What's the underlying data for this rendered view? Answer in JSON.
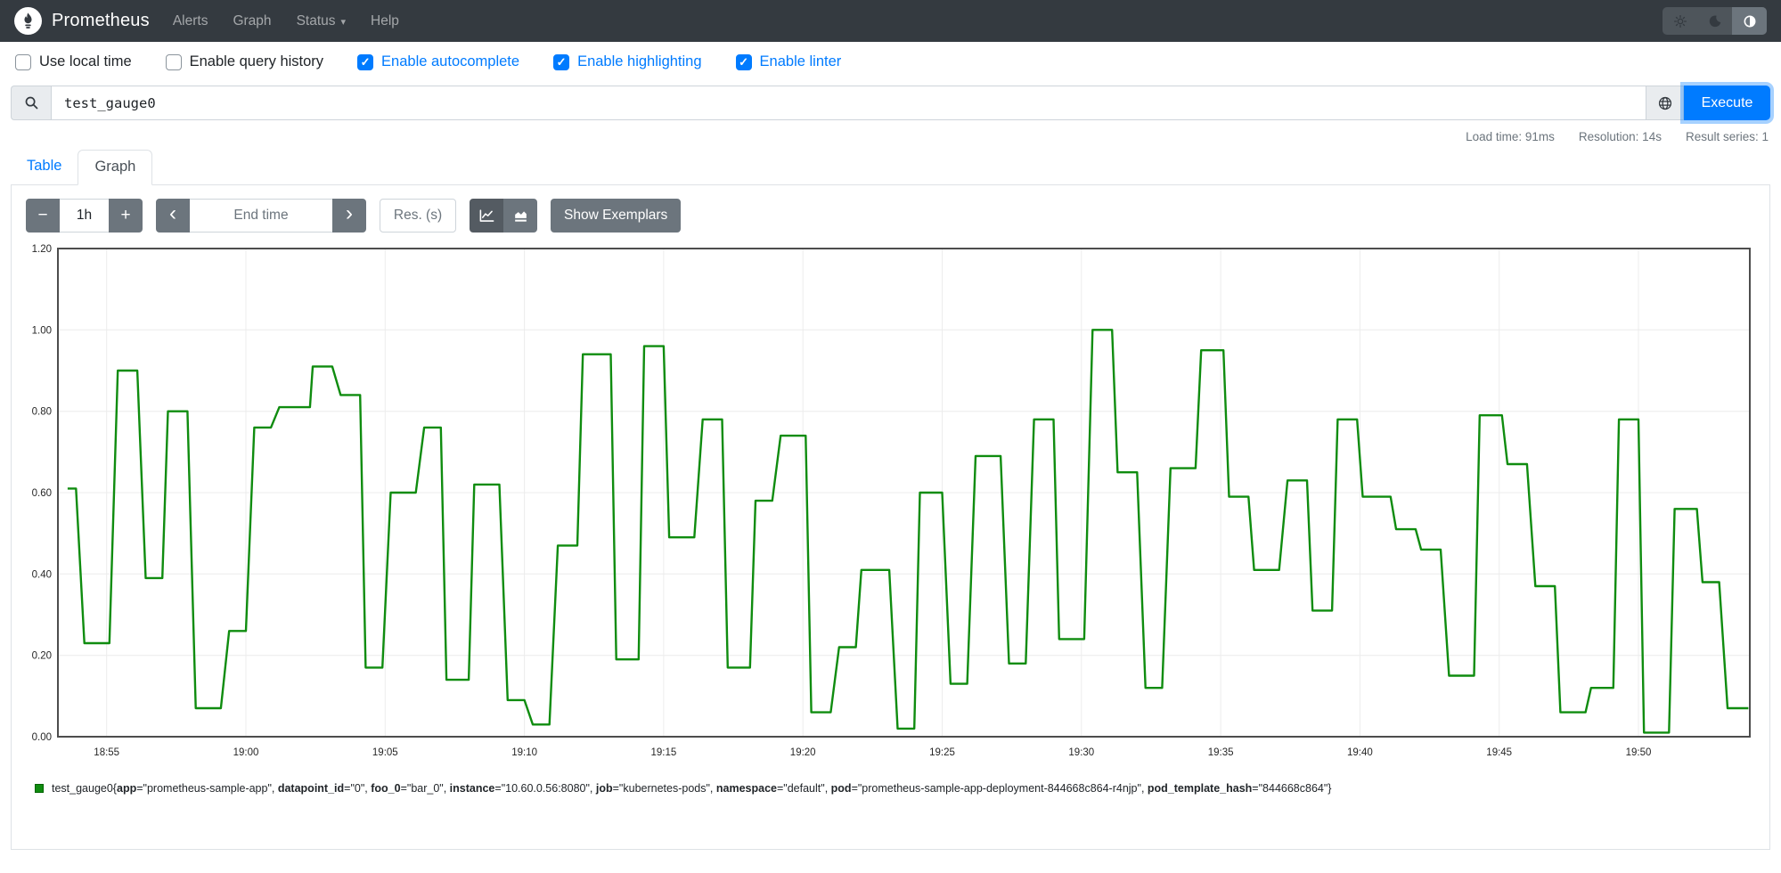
{
  "navbar": {
    "brand": "Prometheus",
    "items": [
      {
        "label": "Alerts"
      },
      {
        "label": "Graph"
      },
      {
        "label": "Status",
        "caret": "▾"
      },
      {
        "label": "Help"
      }
    ]
  },
  "theme_toggle": {
    "options": [
      "light",
      "dark",
      "auto"
    ],
    "active": "auto"
  },
  "options_bar": {
    "checkboxes": [
      {
        "label": "Use local time",
        "checked": false
      },
      {
        "label": "Enable query history",
        "checked": false
      },
      {
        "label": "Enable autocomplete",
        "checked": true
      },
      {
        "label": "Enable highlighting",
        "checked": true
      },
      {
        "label": "Enable linter",
        "checked": true
      }
    ]
  },
  "query_bar": {
    "expression": "test_gauge0",
    "execute_label": "Execute"
  },
  "stats_bar": {
    "items": [
      "Load time: 91ms",
      "Resolution: 14s",
      "Result series: 1"
    ]
  },
  "tabs": [
    {
      "label": "Table",
      "active": false
    },
    {
      "label": "Graph",
      "active": true
    }
  ],
  "graph_controls": {
    "range_decrease": "−",
    "range_value": "1h",
    "range_increase": "+",
    "back_glyph": "‹",
    "end_time_placeholder": "End time",
    "forward_glyph": "›",
    "resolution_placeholder": "Res. (s)",
    "show_exemplars_label": "Show Exemplars"
  },
  "chart_data": {
    "type": "line",
    "title": "",
    "grid": true,
    "legend_position": "bottom-left",
    "x_axis": {
      "unit": "time (HH:MM)",
      "domain_minutes_after_18h": [
        53.25,
        114.0
      ],
      "tick_minutes": [
        55,
        60,
        65,
        70,
        75,
        80,
        85,
        90,
        95,
        100,
        105,
        110
      ],
      "tick_labels": [
        "18:55",
        "19:00",
        "19:05",
        "19:10",
        "19:15",
        "19:20",
        "19:25",
        "19:30",
        "19:35",
        "19:40",
        "19:45",
        "19:50"
      ]
    },
    "y_axis": {
      "range": [
        0,
        1.2
      ],
      "tick_values": [
        1.2,
        1.0,
        0.8,
        0.6,
        0.4,
        0.2,
        0.0
      ],
      "tick_labels": [
        "1.20",
        "1.00",
        "0.80",
        "0.60",
        "0.40",
        "0.20",
        "0.00"
      ]
    },
    "series": [
      {
        "name": "test_gauge0",
        "color": "#0f8c0f",
        "resolution_seconds": 14,
        "plateaus_min_start_end_value": [
          [
            53.6,
            53.9,
            0.61
          ],
          [
            54.2,
            55.1,
            0.23
          ],
          [
            55.4,
            56.1,
            0.9
          ],
          [
            56.4,
            57.0,
            0.39
          ],
          [
            57.2,
            57.9,
            0.8
          ],
          [
            58.2,
            59.1,
            0.07
          ],
          [
            59.4,
            60.0,
            0.26
          ],
          [
            60.3,
            60.9,
            0.76
          ],
          [
            61.2,
            62.3,
            0.81
          ],
          [
            62.4,
            63.1,
            0.91
          ],
          [
            63.4,
            64.1,
            0.84
          ],
          [
            64.3,
            64.9,
            0.17
          ],
          [
            65.2,
            66.1,
            0.6
          ],
          [
            66.4,
            67.0,
            0.76
          ],
          [
            67.2,
            68.0,
            0.14
          ],
          [
            68.2,
            69.1,
            0.62
          ],
          [
            69.4,
            70.0,
            0.09
          ],
          [
            70.3,
            70.9,
            0.03
          ],
          [
            71.2,
            71.9,
            0.47
          ],
          [
            72.1,
            73.1,
            0.94
          ],
          [
            73.3,
            74.1,
            0.19
          ],
          [
            74.3,
            75.0,
            0.96
          ],
          [
            75.2,
            76.1,
            0.49
          ],
          [
            76.4,
            77.1,
            0.78
          ],
          [
            77.3,
            78.1,
            0.17
          ],
          [
            78.3,
            78.9,
            0.58
          ],
          [
            79.2,
            80.1,
            0.74
          ],
          [
            80.3,
            81.0,
            0.06
          ],
          [
            81.3,
            81.9,
            0.22
          ],
          [
            82.1,
            83.1,
            0.41
          ],
          [
            83.4,
            84.0,
            0.02
          ],
          [
            84.2,
            85.0,
            0.6
          ],
          [
            85.3,
            85.9,
            0.13
          ],
          [
            86.2,
            87.1,
            0.69
          ],
          [
            87.4,
            88.0,
            0.18
          ],
          [
            88.3,
            89.0,
            0.78
          ],
          [
            89.2,
            90.1,
            0.24
          ],
          [
            90.4,
            91.1,
            1.0
          ],
          [
            91.3,
            92.0,
            0.65
          ],
          [
            92.3,
            92.9,
            0.12
          ],
          [
            93.2,
            94.1,
            0.66
          ],
          [
            94.3,
            95.1,
            0.95
          ],
          [
            95.3,
            96.0,
            0.59
          ],
          [
            96.2,
            97.1,
            0.41
          ],
          [
            97.4,
            98.1,
            0.63
          ],
          [
            98.3,
            99.0,
            0.31
          ],
          [
            99.2,
            99.9,
            0.78
          ],
          [
            100.1,
            101.1,
            0.59
          ],
          [
            101.3,
            102.0,
            0.51
          ],
          [
            102.2,
            102.9,
            0.46
          ],
          [
            103.2,
            104.1,
            0.15
          ],
          [
            104.3,
            105.1,
            0.79
          ],
          [
            105.3,
            106.0,
            0.67
          ],
          [
            106.3,
            107.0,
            0.37
          ],
          [
            107.2,
            108.1,
            0.06
          ],
          [
            108.3,
            109.1,
            0.12
          ],
          [
            109.3,
            110.0,
            0.78
          ],
          [
            110.2,
            111.1,
            0.01
          ],
          [
            111.3,
            112.1,
            0.56
          ],
          [
            112.3,
            112.9,
            0.38
          ],
          [
            113.2,
            113.95,
            0.07
          ]
        ]
      }
    ]
  },
  "legend": {
    "swatch_color": "#0f8c0f",
    "metric": "test_gauge0",
    "labels": [
      [
        "app",
        "prometheus-sample-app"
      ],
      [
        "datapoint_id",
        "0"
      ],
      [
        "foo_0",
        "bar_0"
      ],
      [
        "instance",
        "10.60.0.56:8080"
      ],
      [
        "job",
        "kubernetes-pods"
      ],
      [
        "namespace",
        "default"
      ],
      [
        "pod",
        "prometheus-sample-app-deployment-844668c864-r4njp"
      ],
      [
        "pod_template_hash",
        "844668c864"
      ]
    ]
  },
  "icons": {
    "logo": "prometheus-torch",
    "search": "magnifier",
    "globe": "globe",
    "light_theme": "sun",
    "dark_theme": "moon",
    "auto_theme": "half-filled-circle",
    "line_chart": "line-chart",
    "stacked_chart": "stacked-area-chart"
  },
  "colors": {
    "navbar_bg": "#343a40",
    "accent_blue": "#007bff",
    "button_gray": "#6c757d",
    "button_gray_active": "#545b62",
    "input_border": "#ced4da",
    "tab_border": "#dee2e6",
    "addon_bg": "#e9ecef",
    "series_green": "#0f8c0f",
    "chart_frame": "#4d4d4d",
    "grid_line": "#ececec",
    "muted_text": "#6c757d"
  }
}
